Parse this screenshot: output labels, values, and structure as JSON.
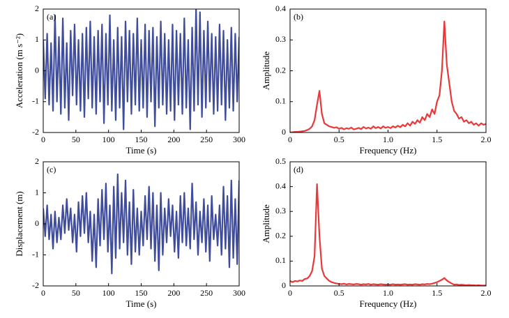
{
  "chart_data": [
    {
      "type": "line",
      "label": "(a)",
      "xlabel": "Time (s)",
      "ylabel": "Acceleration (m s⁻²)",
      "color": "#3f4d9c",
      "xlim": [
        0,
        300
      ],
      "xticks": [
        0,
        50,
        100,
        150,
        200,
        250,
        300
      ],
      "ylim": [
        -2,
        2
      ],
      "yticks": [
        -2,
        -1,
        0,
        1,
        2
      ],
      "x": [
        0,
        3,
        6,
        9,
        12,
        15,
        18,
        21,
        24,
        27,
        30,
        33,
        36,
        39,
        42,
        45,
        48,
        51,
        54,
        57,
        60,
        63,
        66,
        69,
        72,
        75,
        78,
        81,
        84,
        87,
        90,
        93,
        96,
        99,
        102,
        105,
        108,
        111,
        114,
        117,
        120,
        123,
        126,
        129,
        132,
        135,
        138,
        141,
        144,
        147,
        150,
        153,
        156,
        159,
        162,
        165,
        168,
        171,
        174,
        177,
        180,
        183,
        186,
        189,
        192,
        195,
        198,
        201,
        204,
        207,
        210,
        213,
        216,
        219,
        222,
        225,
        228,
        231,
        234,
        237,
        240,
        243,
        246,
        249,
        252,
        255,
        258,
        261,
        264,
        267,
        270,
        273,
        276,
        279,
        282,
        285,
        288,
        291,
        294,
        297,
        300
      ],
      "values": [
        1.0,
        -0.9,
        1.2,
        -1.1,
        0.9,
        -1.3,
        1.8,
        -1.0,
        1.1,
        -1.4,
        1.7,
        -1.2,
        0.9,
        -1.6,
        1.3,
        -0.8,
        1.5,
        -1.1,
        1.0,
        -1.3,
        1.2,
        -1.5,
        1.4,
        -0.9,
        1.6,
        -1.2,
        1.1,
        -1.4,
        1.3,
        -1.0,
        1.5,
        -1.7,
        1.2,
        -1.1,
        1.8,
        -1.3,
        1.0,
        -1.6,
        1.4,
        -1.2,
        1.1,
        -1.9,
        1.6,
        -1.0,
        1.3,
        -1.4,
        1.2,
        -1.1,
        1.7,
        -1.3,
        1.0,
        -1.2,
        1.5,
        -1.5,
        1.3,
        -1.0,
        1.4,
        -1.8,
        1.1,
        -1.2,
        1.6,
        -1.1,
        1.2,
        -1.4,
        1.0,
        -1.3,
        1.5,
        -1.6,
        1.3,
        -1.1,
        1.2,
        -1.4,
        1.7,
        -1.2,
        1.0,
        -1.9,
        1.4,
        -1.3,
        2.0,
        -1.1,
        1.9,
        -1.5,
        1.3,
        -1.2,
        1.6,
        -1.0,
        1.2,
        -1.4,
        1.1,
        -1.3,
        1.5,
        -1.1,
        1.3,
        -1.6,
        1.0,
        -1.2,
        1.4,
        -1.3,
        1.2,
        -1.0,
        1.1
      ]
    },
    {
      "type": "line",
      "label": "(b)",
      "xlabel": "Frequency (Hz)",
      "ylabel": "Amplitude",
      "color": "#e8383a",
      "xlim": [
        0,
        2
      ],
      "xticks": [
        0,
        0.5,
        {
          "value": 1,
          "label": "1.0"
        },
        1.5,
        {
          "value": 2,
          "label": "2.0"
        }
      ],
      "ylim": [
        0,
        0.4
      ],
      "yticks": [
        0,
        0.1,
        0.2,
        0.3,
        0.4
      ],
      "x": [
        0,
        0.025,
        0.05,
        0.075,
        0.1,
        0.125,
        0.15,
        0.175,
        0.2,
        0.225,
        0.25,
        0.275,
        0.3,
        0.325,
        0.35,
        0.375,
        0.4,
        0.425,
        0.45,
        0.475,
        0.5,
        0.525,
        0.55,
        0.575,
        0.6,
        0.625,
        0.65,
        0.675,
        0.7,
        0.725,
        0.75,
        0.775,
        0.8,
        0.825,
        0.85,
        0.875,
        0.9,
        0.925,
        0.95,
        0.975,
        1,
        1.025,
        1.05,
        1.075,
        1.1,
        1.125,
        1.15,
        1.175,
        1.2,
        1.225,
        1.25,
        1.275,
        1.3,
        1.325,
        1.35,
        1.375,
        1.4,
        1.425,
        1.45,
        1.475,
        1.5,
        1.525,
        1.55,
        1.575,
        1.6,
        1.625,
        1.65,
        1.675,
        1.7,
        1.725,
        1.75,
        1.775,
        1.8,
        1.825,
        1.85,
        1.875,
        1.9,
        1.925,
        1.95,
        1.975,
        2
      ],
      "values": [
        0,
        0.001,
        0.002,
        0.002,
        0.003,
        0.004,
        0.005,
        0.008,
        0.012,
        0.02,
        0.04,
        0.09,
        0.135,
        0.06,
        0.03,
        0.025,
        0.02,
        0.018,
        0.015,
        0.017,
        0.012,
        0.015,
        0.01,
        0.014,
        0.012,
        0.016,
        0.01,
        0.012,
        0.015,
        0.011,
        0.018,
        0.013,
        0.016,
        0.012,
        0.02,
        0.014,
        0.018,
        0.013,
        0.02,
        0.015,
        0.018,
        0.014,
        0.02,
        0.016,
        0.022,
        0.017,
        0.025,
        0.02,
        0.03,
        0.022,
        0.035,
        0.028,
        0.04,
        0.032,
        0.05,
        0.04,
        0.06,
        0.05,
        0.075,
        0.06,
        0.1,
        0.12,
        0.2,
        0.36,
        0.22,
        0.16,
        0.1,
        0.07,
        0.06,
        0.045,
        0.05,
        0.035,
        0.04,
        0.03,
        0.035,
        0.025,
        0.03,
        0.022,
        0.03,
        0.025,
        0.028
      ]
    },
    {
      "type": "line",
      "label": "(c)",
      "xlabel": "Time (s)",
      "ylabel": "Displacement (m)",
      "color": "#3f4d9c",
      "xlim": [
        0,
        300
      ],
      "xticks": [
        0,
        50,
        100,
        150,
        200,
        250,
        300
      ],
      "ylim": [
        -2,
        2
      ],
      "yticks": [
        -2,
        -1,
        0,
        1,
        2
      ],
      "x": [
        0,
        3,
        6,
        9,
        12,
        15,
        18,
        21,
        24,
        27,
        30,
        33,
        36,
        39,
        42,
        45,
        48,
        51,
        54,
        57,
        60,
        63,
        66,
        69,
        72,
        75,
        78,
        81,
        84,
        87,
        90,
        93,
        96,
        99,
        102,
        105,
        108,
        111,
        114,
        117,
        120,
        123,
        126,
        129,
        132,
        135,
        138,
        141,
        144,
        147,
        150,
        153,
        156,
        159,
        162,
        165,
        168,
        171,
        174,
        177,
        180,
        183,
        186,
        189,
        192,
        195,
        198,
        201,
        204,
        207,
        210,
        213,
        216,
        219,
        222,
        225,
        228,
        231,
        234,
        237,
        240,
        243,
        246,
        249,
        252,
        255,
        258,
        261,
        264,
        267,
        270,
        273,
        276,
        279,
        282,
        285,
        288,
        291,
        294,
        297,
        300
      ],
      "values": [
        0.5,
        -0.4,
        0.6,
        -0.5,
        0.3,
        -0.8,
        0.4,
        -0.6,
        0.2,
        -0.5,
        0.6,
        -0.3,
        0.8,
        -0.2,
        0.5,
        -0.6,
        0.3,
        -0.9,
        0.7,
        -0.4,
        0.9,
        -0.3,
        1.0,
        -0.6,
        0.4,
        -1.2,
        0.3,
        -1.4,
        0.8,
        -0.7,
        1.1,
        -0.5,
        1.3,
        -0.9,
        0.6,
        -1.6,
        1.2,
        -1.1,
        1.6,
        -0.8,
        1.0,
        -0.6,
        1.4,
        -1.0,
        0.7,
        -1.3,
        1.1,
        -0.9,
        0.5,
        -1.0,
        0.4,
        -0.7,
        0.9,
        -0.5,
        1.2,
        -0.8,
        1.0,
        -1.2,
        0.6,
        -1.5,
        1.0,
        -1.0,
        0.5,
        -0.6,
        0.8,
        -0.4,
        0.6,
        -0.9,
        0.4,
        -1.1,
        0.9,
        -0.6,
        1.0,
        -0.7,
        0.5,
        -0.8,
        1.3,
        -0.5,
        0.7,
        -1.0,
        0.4,
        -0.6,
        0.8,
        -0.9,
        0.6,
        -1.2,
        0.9,
        -0.5,
        0.3,
        -0.7,
        0.6,
        -1.0,
        1.2,
        -0.8,
        0.9,
        -1.4,
        1.4,
        -1.1,
        0.8,
        -1.3,
        1.4
      ]
    },
    {
      "type": "line",
      "label": "(d)",
      "xlabel": "Frequency (Hz)",
      "ylabel": "Amplitude",
      "color": "#e8383a",
      "xlim": [
        0,
        2
      ],
      "xticks": [
        0,
        0.5,
        {
          "value": 1,
          "label": "1.0"
        },
        1.5,
        {
          "value": 2,
          "label": "2.0"
        }
      ],
      "ylim": [
        0,
        0.5
      ],
      "yticks": [
        0,
        0.1,
        0.2,
        0.3,
        0.4,
        0.5
      ],
      "x": [
        0,
        0.025,
        0.05,
        0.075,
        0.1,
        0.125,
        0.15,
        0.175,
        0.2,
        0.225,
        0.25,
        0.275,
        0.3,
        0.325,
        0.35,
        0.375,
        0.4,
        0.425,
        0.45,
        0.475,
        0.5,
        0.525,
        0.55,
        0.575,
        0.6,
        0.625,
        0.65,
        0.675,
        0.7,
        0.725,
        0.75,
        0.775,
        0.8,
        0.825,
        0.85,
        0.875,
        0.9,
        0.925,
        0.95,
        0.975,
        1,
        1.025,
        1.05,
        1.075,
        1.1,
        1.125,
        1.15,
        1.175,
        1.2,
        1.225,
        1.25,
        1.275,
        1.3,
        1.325,
        1.35,
        1.375,
        1.4,
        1.425,
        1.45,
        1.475,
        1.5,
        1.525,
        1.55,
        1.575,
        1.6,
        1.625,
        1.65,
        1.675,
        1.7,
        1.725,
        1.75,
        1.775,
        1.8,
        1.825,
        1.85,
        1.875,
        1.9,
        1.925,
        1.95,
        1.975,
        2
      ],
      "values": [
        0.02,
        0.015,
        0.02,
        0.018,
        0.022,
        0.02,
        0.028,
        0.03,
        0.04,
        0.06,
        0.12,
        0.41,
        0.2,
        0.07,
        0.04,
        0.03,
        0.02,
        0.015,
        0.012,
        0.01,
        0.008,
        0.007,
        0.009,
        0.006,
        0.008,
        0.007,
        0.006,
        0.008,
        0.007,
        0.005,
        0.007,
        0.006,
        0.008,
        0.005,
        0.007,
        0.006,
        0.005,
        0.007,
        0.006,
        0.005,
        0.006,
        0.005,
        0.007,
        0.005,
        0.006,
        0.005,
        0.006,
        0.007,
        0.005,
        0.006,
        0.005,
        0.007,
        0.006,
        0.005,
        0.007,
        0.006,
        0.008,
        0.007,
        0.009,
        0.012,
        0.015,
        0.02,
        0.025,
        0.032,
        0.022,
        0.015,
        0.01,
        0.005,
        0.006,
        0.004,
        0.005,
        0.004,
        0.003,
        0.004,
        0.003,
        0.003,
        0.002,
        0.003,
        0.002,
        0.002,
        0.002
      ]
    }
  ]
}
